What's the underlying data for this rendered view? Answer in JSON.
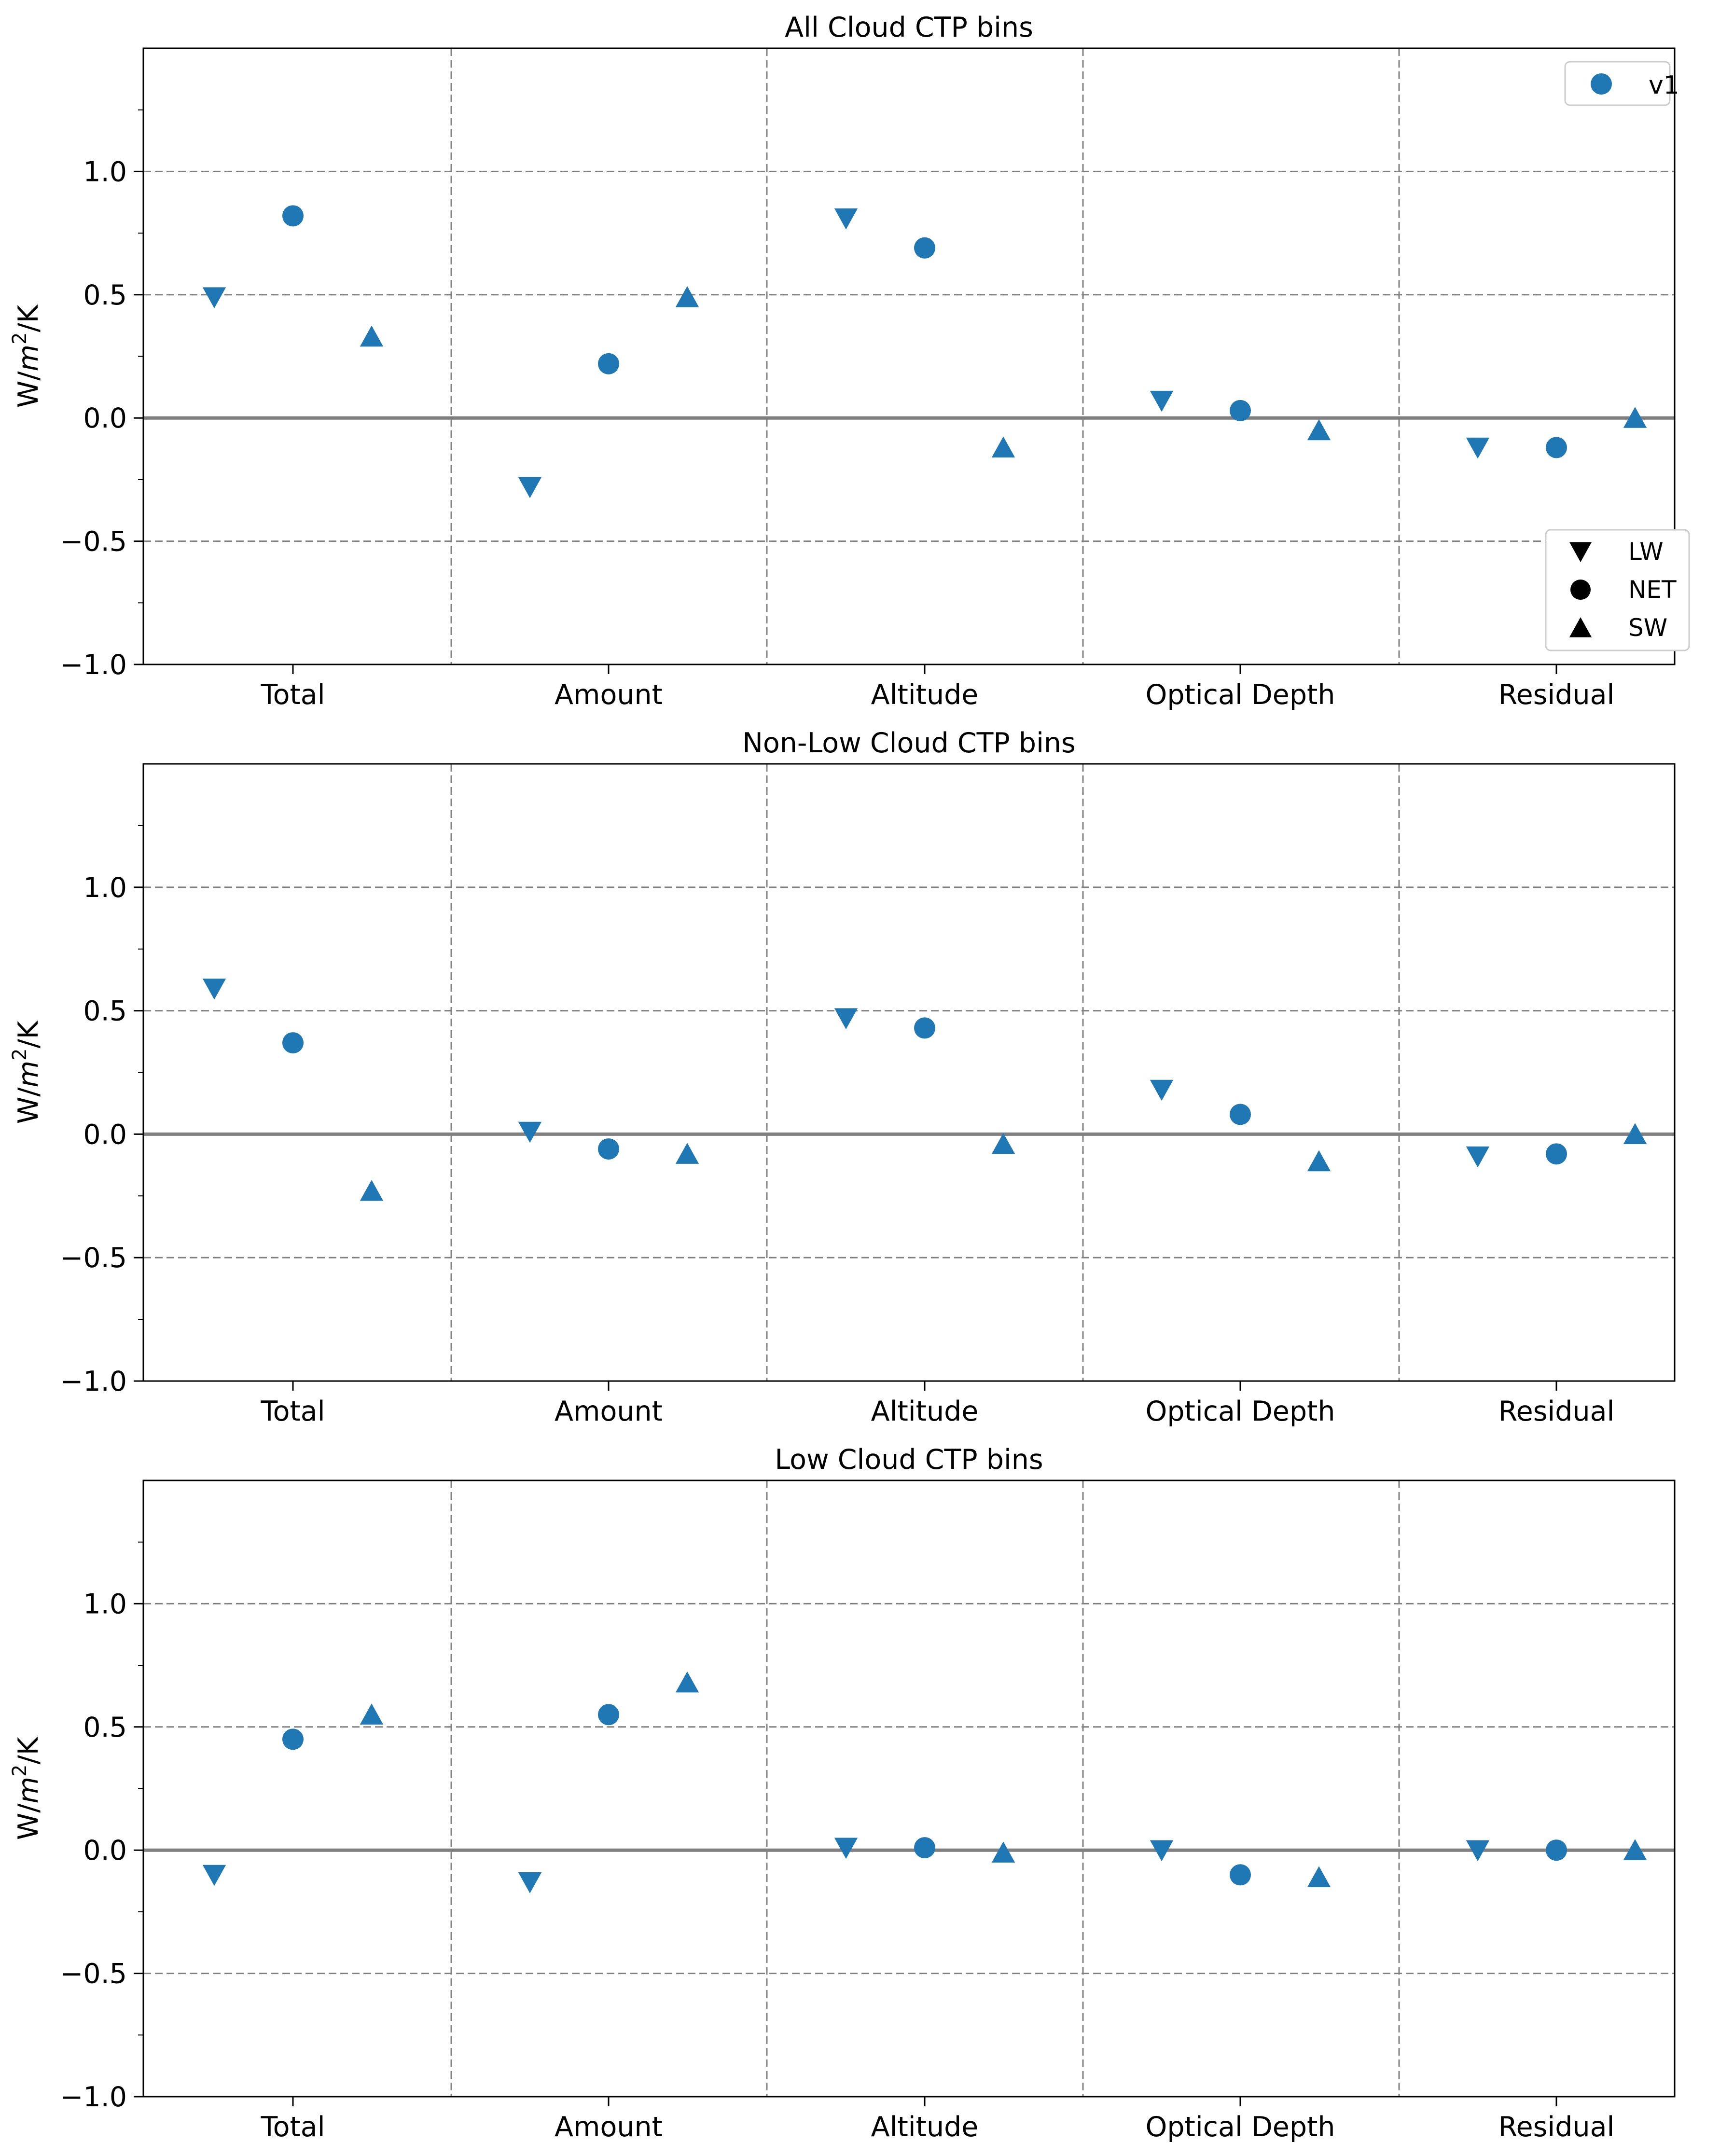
{
  "chart_data": [
    {
      "type": "scatter",
      "title": "All Cloud CTP bins",
      "ylabel": "W/m²/K",
      "categories": [
        "Total",
        "Amount",
        "Altitude",
        "Optical Depth",
        "Residual"
      ],
      "ylim": [
        -1.0,
        1.5
      ],
      "yticks": [
        -1.0,
        -0.5,
        0.0,
        0.5,
        1.0
      ],
      "grid": true,
      "series": [
        {
          "name": "LW",
          "marker": "triangle-down",
          "values": [
            0.49,
            -0.28,
            0.81,
            0.07,
            -0.12
          ]
        },
        {
          "name": "NET",
          "marker": "circle",
          "values": [
            0.82,
            0.22,
            0.69,
            0.03,
            -0.12
          ]
        },
        {
          "name": "SW",
          "marker": "triangle-up",
          "values": [
            0.33,
            0.49,
            -0.12,
            -0.05,
            0.0
          ]
        }
      ],
      "legend": {
        "model": {
          "label": "v1",
          "placement": "upper-right"
        },
        "markers": {
          "placement": "lower-right"
        }
      }
    },
    {
      "type": "scatter",
      "title": "Non-Low Cloud CTP bins",
      "ylabel": "W/m²/K",
      "categories": [
        "Total",
        "Amount",
        "Altitude",
        "Optical Depth",
        "Residual"
      ],
      "ylim": [
        -1.0,
        1.5
      ],
      "yticks": [
        -1.0,
        -0.5,
        0.0,
        0.5,
        1.0
      ],
      "grid": true,
      "series": [
        {
          "name": "LW",
          "marker": "triangle-down",
          "values": [
            0.59,
            0.01,
            0.47,
            0.18,
            -0.09
          ]
        },
        {
          "name": "NET",
          "marker": "circle",
          "values": [
            0.37,
            -0.06,
            0.43,
            0.08,
            -0.08
          ]
        },
        {
          "name": "SW",
          "marker": "triangle-up",
          "values": [
            -0.23,
            -0.08,
            -0.04,
            -0.11,
            0.0
          ]
        }
      ]
    },
    {
      "type": "scatter",
      "title": "Low Cloud CTP bins",
      "ylabel": "W/m²/K",
      "categories": [
        "Total",
        "Amount",
        "Altitude",
        "Optical Depth",
        "Residual"
      ],
      "ylim": [
        -1.0,
        1.5
      ],
      "yticks": [
        -1.0,
        -0.5,
        0.0,
        0.5,
        1.0
      ],
      "grid": true,
      "series": [
        {
          "name": "LW",
          "marker": "triangle-down",
          "values": [
            -0.1,
            -0.13,
            0.01,
            0.0,
            0.0
          ]
        },
        {
          "name": "NET",
          "marker": "circle",
          "values": [
            0.45,
            0.55,
            0.01,
            -0.1,
            0.0
          ]
        },
        {
          "name": "SW",
          "marker": "triangle-up",
          "values": [
            0.55,
            0.68,
            -0.01,
            -0.11,
            0.0
          ]
        }
      ]
    }
  ],
  "colors": {
    "marker": "#1f77b4",
    "grid": "#808080",
    "zero_line": "#808080",
    "legend_marker": "#000000",
    "axes": "#000000"
  }
}
